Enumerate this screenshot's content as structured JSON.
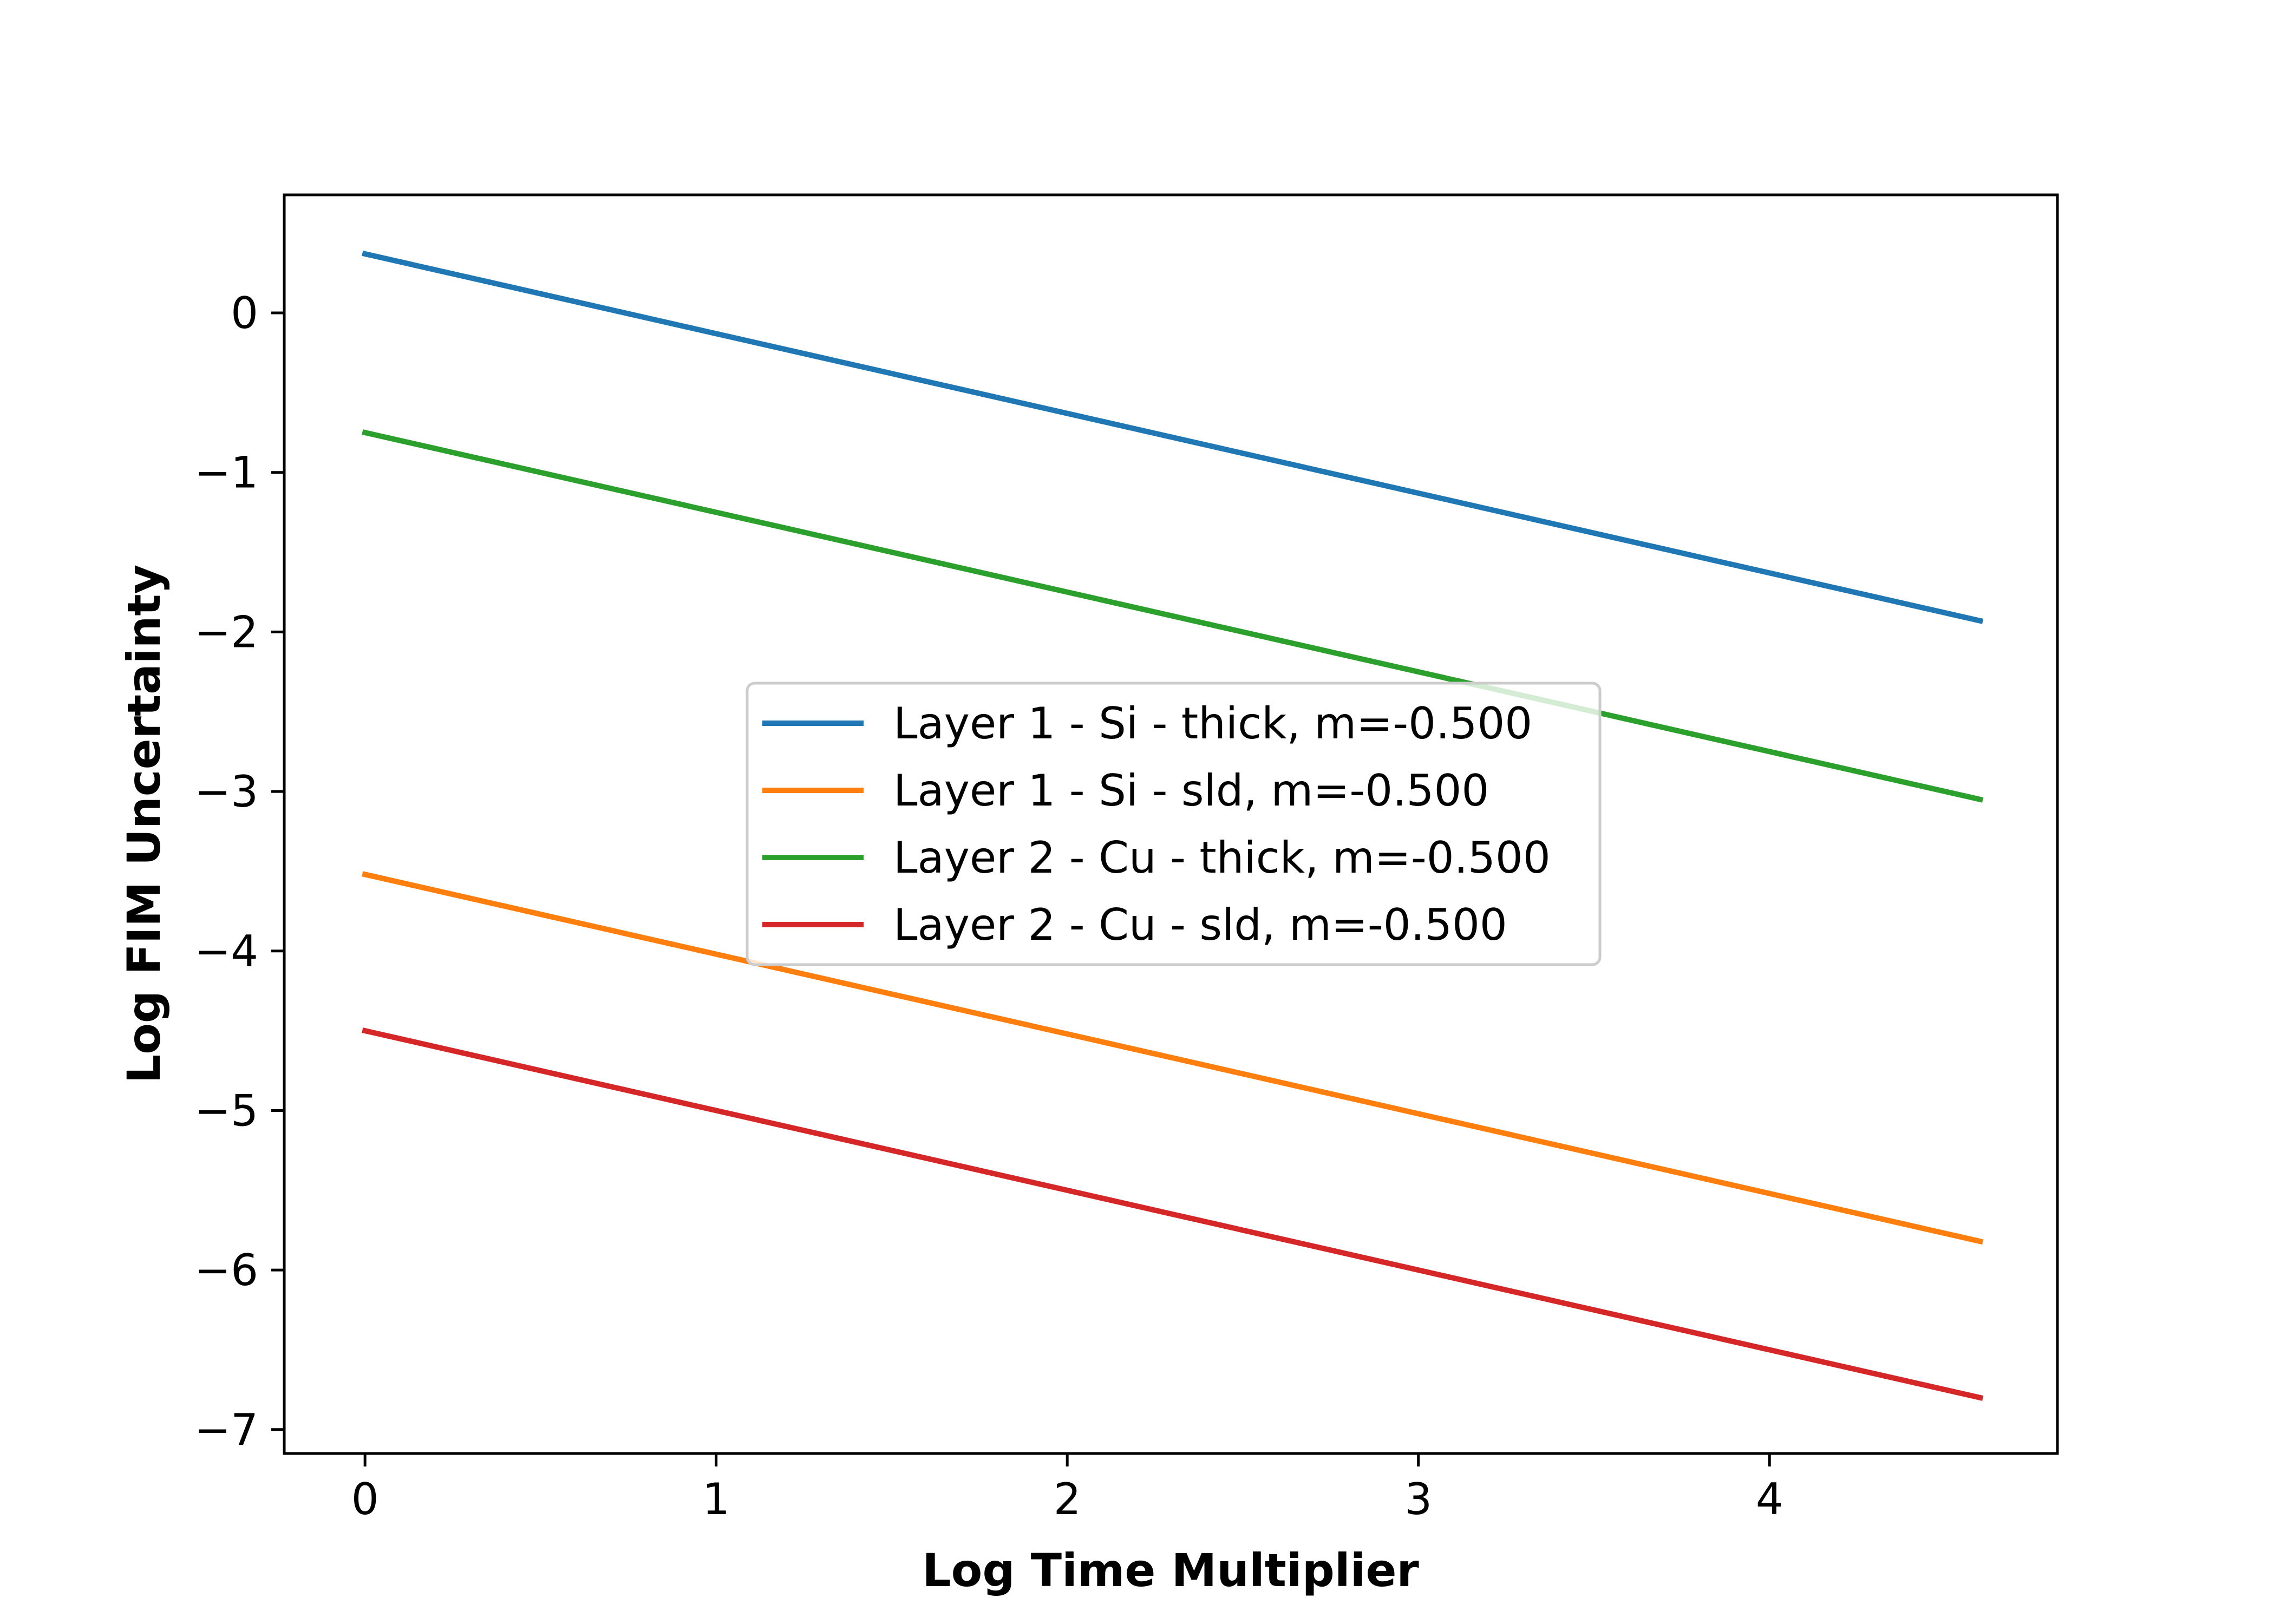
{
  "chart_data": {
    "type": "line",
    "title": "",
    "xlabel": "Log Time Multiplier",
    "ylabel": "Log FIM Uncertainty",
    "xlim": [
      -0.23,
      4.82
    ],
    "ylim": [
      -7.15,
      0.74
    ],
    "xticks": [
      0,
      1,
      2,
      3,
      4
    ],
    "yticks": [
      0,
      -1,
      -2,
      -3,
      -4,
      -5,
      -6,
      -7
    ],
    "xtick_labels": [
      "0",
      "1",
      "2",
      "3",
      "4"
    ],
    "ytick_labels": [
      "0",
      "−1",
      "−2",
      "−3",
      "−4",
      "−5",
      "−6",
      "−7"
    ],
    "grid": false,
    "legend_position": "center",
    "series": [
      {
        "name": "Layer 1 - Si - thick, m=-0.500",
        "color": "#1f77b4",
        "x": [
          0,
          4.6
        ],
        "y": [
          0.37,
          -1.93
        ]
      },
      {
        "name": "Layer 1 - Si - sld, m=-0.500",
        "color": "#ff7f0e",
        "x": [
          0,
          4.6
        ],
        "y": [
          -3.52,
          -5.82
        ]
      },
      {
        "name": "Layer 2 - Cu - thick, m=-0.500",
        "color": "#2ca02c",
        "x": [
          0,
          4.6
        ],
        "y": [
          -0.75,
          -3.05
        ]
      },
      {
        "name": "Layer 2 - Cu - sld, m=-0.500",
        "color": "#d62728",
        "x": [
          0,
          4.6
        ],
        "y": [
          -4.5,
          -6.8
        ]
      }
    ]
  }
}
